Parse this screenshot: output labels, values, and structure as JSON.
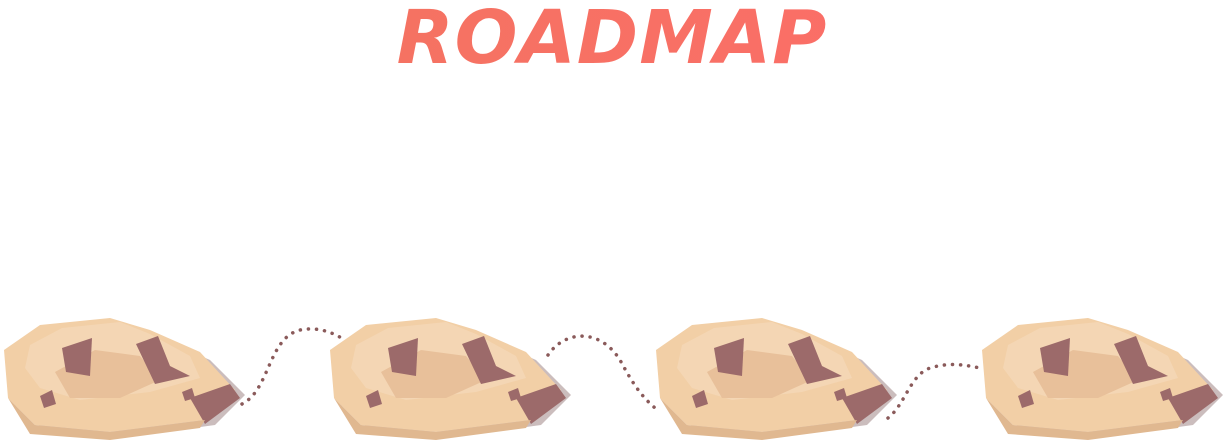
{
  "header": {
    "title": "ROADMAP",
    "title_color_start": "#f0765e",
    "title_color_end": "#ff6b6b"
  },
  "road": {
    "stage_count": 4,
    "path_color": "#8a5a5a",
    "island_colors": {
      "light": "#f2cfa6",
      "mid": "#e8c09a",
      "top": "#f4d6b4",
      "dark": "#9c6a6a",
      "shadow": "#cbbdbd"
    }
  }
}
